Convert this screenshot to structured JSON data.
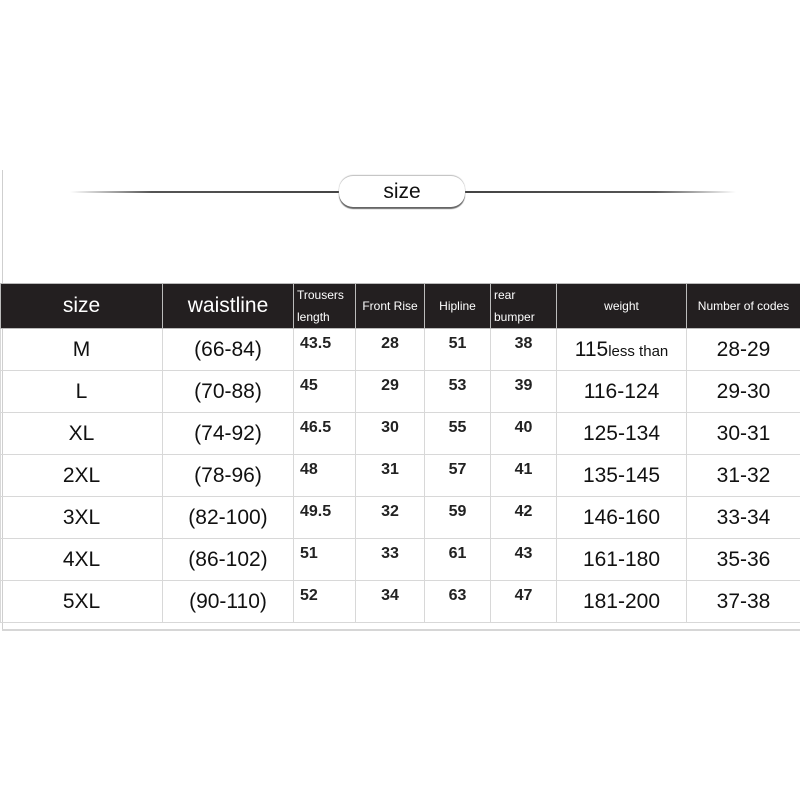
{
  "title": "size",
  "headers": [
    "size",
    "waistline",
    "Trousers length",
    "Front Rise",
    "Hipline",
    "rear bumper",
    "weight",
    "Number of codes"
  ],
  "rows": [
    {
      "size": "M",
      "waistline": "(66-84)",
      "trousers_length": "43.5",
      "front_rise": "28",
      "hipline": "51",
      "rear_bumper": "38",
      "weight": "115",
      "weight_note": "less than",
      "codes": "28-29"
    },
    {
      "size": "L",
      "waistline": "(70-88)",
      "trousers_length": "45",
      "front_rise": "29",
      "hipline": "53",
      "rear_bumper": "39",
      "weight": "116-124",
      "codes": "29-30"
    },
    {
      "size": "XL",
      "waistline": "(74-92)",
      "trousers_length": "46.5",
      "front_rise": "30",
      "hipline": "55",
      "rear_bumper": "40",
      "weight": "125-134",
      "codes": "30-31"
    },
    {
      "size": "2XL",
      "waistline": "(78-96)",
      "trousers_length": "48",
      "front_rise": "31",
      "hipline": "57",
      "rear_bumper": "41",
      "weight": "135-145",
      "codes": "31-32"
    },
    {
      "size": "3XL",
      "waistline": "(82-100)",
      "trousers_length": "49.5",
      "front_rise": "32",
      "hipline": "59",
      "rear_bumper": "42",
      "weight": "146-160",
      "codes": "33-34"
    },
    {
      "size": "4XL",
      "waistline": "(86-102)",
      "trousers_length": "51",
      "front_rise": "33",
      "hipline": "61",
      "rear_bumper": "43",
      "weight": "161-180",
      "codes": "35-36"
    },
    {
      "size": "5XL",
      "waistline": "(90-110)",
      "trousers_length": "52",
      "front_rise": "34",
      "hipline": "63",
      "rear_bumper": "47",
      "weight": "181-200",
      "codes": "37-38"
    }
  ],
  "colors": {
    "header_bg": "#231f20",
    "header_text": "#ffffff",
    "grid": "#d8d8d8"
  }
}
